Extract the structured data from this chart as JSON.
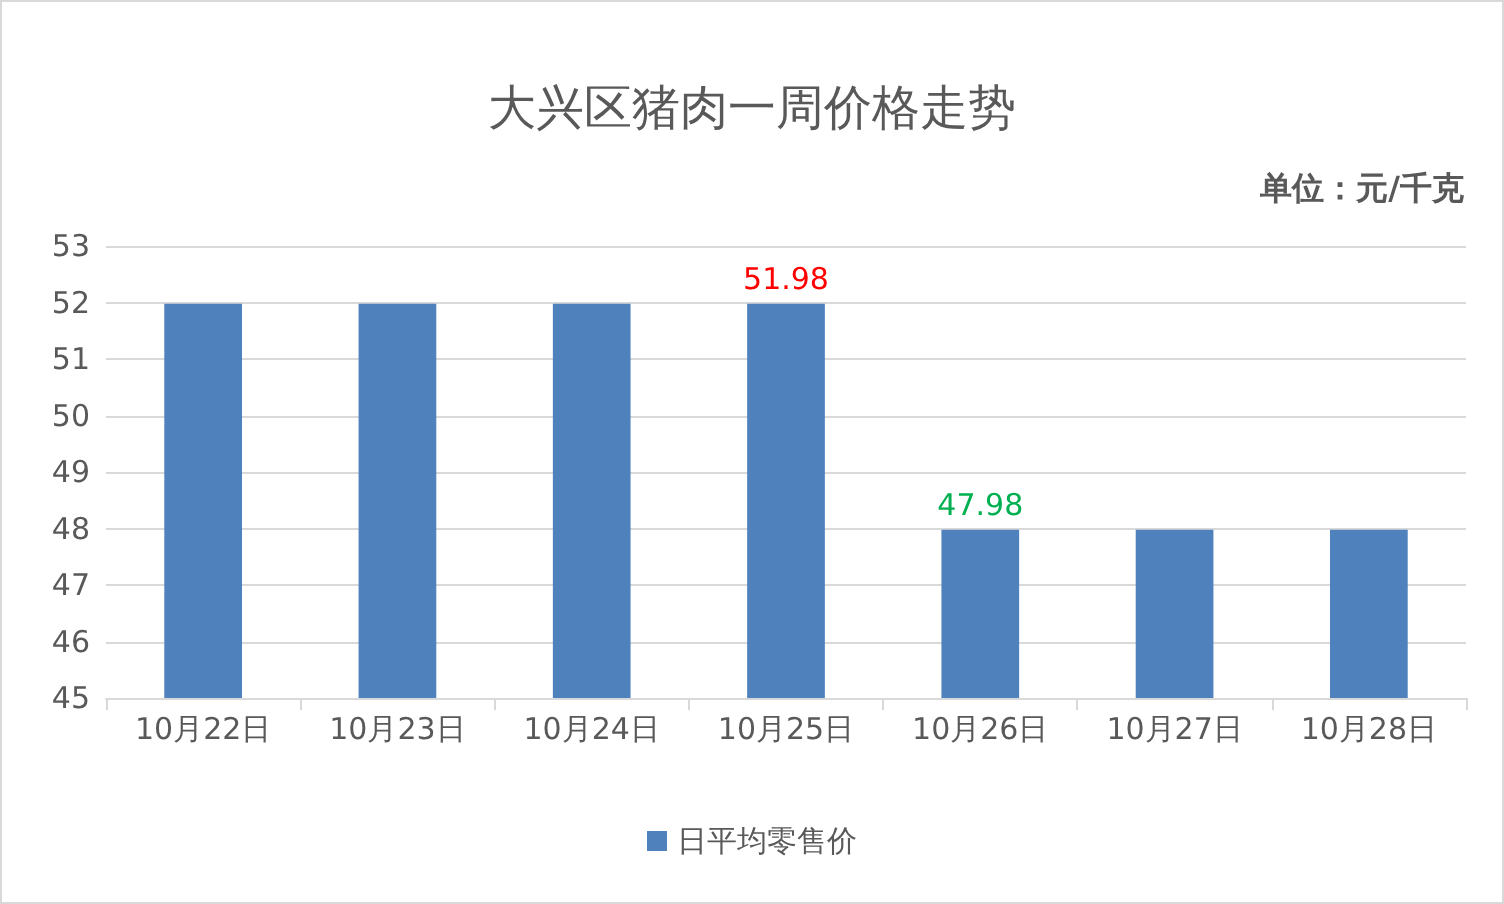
{
  "chart_data": {
    "type": "bar",
    "title": "大兴区猪肉一周价格走势",
    "subtitle": "单位：元/千克",
    "categories": [
      "10月22日",
      "10月23日",
      "10月24日",
      "10月25日",
      "10月26日",
      "10月27日",
      "10月28日"
    ],
    "series": [
      {
        "name": "日平均零售价",
        "color": "#4f81bd",
        "values": [
          51.98,
          51.98,
          51.98,
          51.98,
          47.98,
          47.98,
          47.98
        ],
        "value_labels": [
          null,
          null,
          null,
          "51.98",
          "47.98",
          null,
          null
        ]
      }
    ],
    "ylim": [
      45,
      53
    ],
    "yticks": [
      45,
      46,
      47,
      48,
      49,
      50,
      51,
      52,
      53
    ],
    "grid": "y",
    "legend": "bottom"
  }
}
